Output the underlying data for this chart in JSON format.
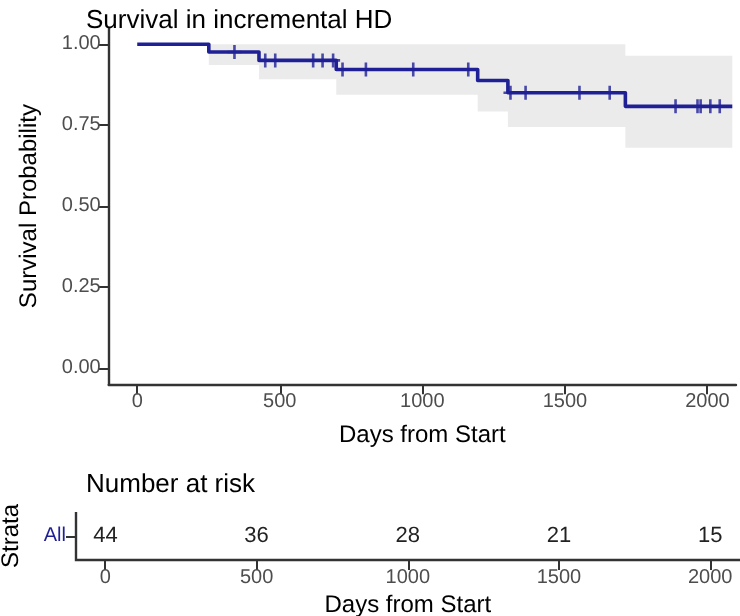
{
  "chart_data": [
    {
      "type": "step",
      "title": "Survival in incremental HD",
      "xlabel": "Days from Start",
      "ylabel": "Survival Probability",
      "xlim": [
        -100,
        2100
      ],
      "xticks": [
        0,
        500,
        1000,
        1500,
        2000
      ],
      "ylim": [
        -0.05,
        1.05
      ],
      "yticks": [
        {
          "value": 0,
          "label": "0.00"
        },
        {
          "value": 0.25,
          "label": "0.25"
        },
        {
          "value": 0.5,
          "label": "0.50"
        },
        {
          "value": 0.75,
          "label": "0.75"
        },
        {
          "value": 1,
          "label": "1.00"
        }
      ],
      "grid": false,
      "series": [
        {
          "type": "step",
          "color": "#1f1f96",
          "x": [
            0,
            251,
            427,
            698,
            1194,
            1300,
            1712,
            2087
          ],
          "values": [
            1,
            0.976,
            0.95,
            0.922,
            0.888,
            0.85,
            0.808,
            0.808
          ],
          "lower": [
            1,
            0.936,
            0.892,
            0.844,
            0.792,
            0.744,
            0.68,
            0.68
          ],
          "upper": [
            1,
            1,
            1,
            1,
            1,
            1,
            0.964,
            0.964
          ]
        },
        {
          "type": "scatter",
          "marker": "cross",
          "color": "#1f1f96",
          "x": [
            341,
            449,
            484,
            617,
            650,
            687,
            720,
            802,
            968,
            1161,
            1309,
            1362,
            1551,
            1657,
            1888,
            1965,
            1976,
            2010,
            2043
          ],
          "values": [
            0.976,
            0.95,
            0.95,
            0.95,
            0.95,
            0.95,
            0.922,
            0.922,
            0.922,
            0.922,
            0.85,
            0.85,
            0.85,
            0.85,
            0.808,
            0.808,
            0.808,
            0.808,
            0.808
          ]
        }
      ]
    },
    {
      "type": "heatmap",
      "title": "Number at risk",
      "xlabel": "Days from Start",
      "ylabel": "Strata",
      "categories": [
        "0",
        "500",
        "1000",
        "1500",
        "2000"
      ],
      "y_categories": [
        "All"
      ],
      "cells": [
        [
          44,
          36,
          28,
          21,
          15
        ]
      ],
      "data_labels": true
    }
  ]
}
